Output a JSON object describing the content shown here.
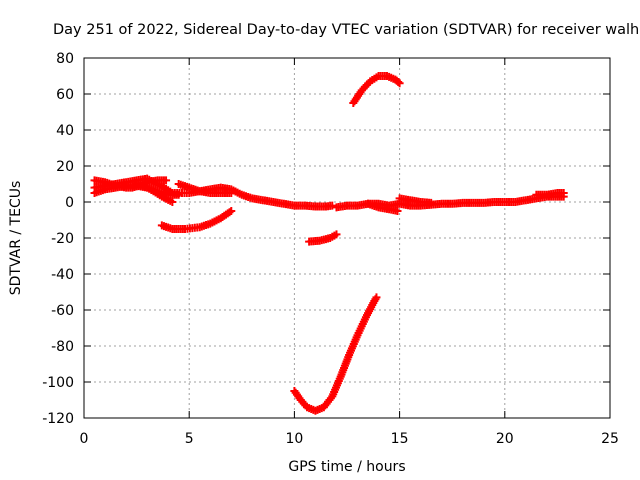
{
  "chart_data": {
    "type": "scatter",
    "title": "Day 251 of 2022, Sidereal Day-to-day VTEC variation (SDTVAR) for receiver walh",
    "xlabel": "GPS time / hours",
    "ylabel": "SDTVAR / TECUs",
    "xlim": [
      0,
      25
    ],
    "ylim": [
      -120,
      80
    ],
    "xticks": [
      0,
      5,
      10,
      15,
      20,
      25
    ],
    "yticks": [
      -120,
      -100,
      -80,
      -60,
      -40,
      -20,
      0,
      20,
      40,
      60,
      80
    ],
    "grid": true,
    "marker": "plus",
    "series_color": "#ff0000",
    "series": [
      {
        "name": "main-trace",
        "points": [
          [
            0.5,
            8
          ],
          [
            1,
            9
          ],
          [
            1.5,
            10
          ],
          [
            2,
            11
          ],
          [
            2.5,
            12
          ],
          [
            3,
            13
          ],
          [
            3.3,
            11
          ],
          [
            3.8,
            8
          ],
          [
            4.2,
            5
          ],
          [
            5,
            5
          ],
          [
            5.5,
            6
          ],
          [
            6,
            7
          ],
          [
            6.5,
            8
          ],
          [
            7,
            7
          ],
          [
            7.5,
            4
          ],
          [
            8,
            2
          ],
          [
            8.5,
            1
          ],
          [
            9,
            0
          ],
          [
            9.5,
            -1
          ],
          [
            10,
            -2
          ],
          [
            10.5,
            -2
          ],
          [
            11,
            -2.5
          ],
          [
            11.5,
            -2.5
          ],
          [
            11.8,
            -2
          ]
        ]
      },
      {
        "name": "early-arc-a",
        "points": [
          [
            0.5,
            12
          ],
          [
            1,
            11
          ],
          [
            1.5,
            9
          ],
          [
            2,
            8
          ],
          [
            2.3,
            8
          ],
          [
            2.6,
            9
          ],
          [
            3,
            11
          ],
          [
            3.5,
            12
          ],
          [
            3.9,
            12
          ]
        ]
      },
      {
        "name": "early-arc-b",
        "points": [
          [
            0.5,
            5
          ],
          [
            1,
            7
          ],
          [
            1.5,
            8
          ],
          [
            2,
            9
          ],
          [
            2.5,
            9
          ],
          [
            3,
            8
          ],
          [
            3.5,
            6
          ],
          [
            4,
            4
          ],
          [
            4.5,
            4
          ]
        ]
      },
      {
        "name": "early-arc-c",
        "points": [
          [
            2.5,
            10
          ],
          [
            3,
            8
          ],
          [
            3.3,
            6
          ],
          [
            3.7,
            3
          ],
          [
            4.2,
            0
          ]
        ]
      },
      {
        "name": "mid-arc",
        "points": [
          [
            4.5,
            10
          ],
          [
            5,
            8
          ],
          [
            5.5,
            6
          ],
          [
            6,
            5
          ],
          [
            6.5,
            5
          ],
          [
            7,
            5
          ]
        ]
      },
      {
        "name": "negative-arc",
        "points": [
          [
            3.7,
            -13
          ],
          [
            4.2,
            -15
          ],
          [
            4.8,
            -15
          ],
          [
            5.5,
            -14
          ],
          [
            6,
            -12
          ],
          [
            6.5,
            -9
          ],
          [
            7,
            -5
          ]
        ]
      },
      {
        "name": "short-segment",
        "points": [
          [
            10.7,
            -22
          ],
          [
            11.2,
            -21.5
          ],
          [
            11.7,
            -20
          ],
          [
            12,
            -18
          ]
        ]
      },
      {
        "name": "late-trace",
        "points": [
          [
            12,
            -3
          ],
          [
            12.5,
            -2
          ],
          [
            13,
            -2
          ],
          [
            13.5,
            -1
          ],
          [
            14,
            -1
          ],
          [
            14.5,
            -2
          ],
          [
            15,
            -1
          ],
          [
            15.5,
            -2
          ],
          [
            16,
            -2
          ],
          [
            16.5,
            -1.5
          ],
          [
            17,
            -1
          ],
          [
            17.5,
            -1
          ],
          [
            18,
            -0.5
          ],
          [
            18.5,
            -0.5
          ],
          [
            19,
            -0.5
          ],
          [
            19.5,
            0
          ],
          [
            20,
            0
          ],
          [
            20.5,
            0
          ],
          [
            21,
            1
          ],
          [
            21.5,
            2
          ],
          [
            22,
            3
          ],
          [
            22.5,
            3
          ],
          [
            22.8,
            3
          ]
        ]
      },
      {
        "name": "late-arc-a",
        "points": [
          [
            13.5,
            -1
          ],
          [
            14,
            -3
          ],
          [
            14.5,
            -4
          ],
          [
            14.9,
            -5
          ]
        ]
      },
      {
        "name": "late-arc-b",
        "points": [
          [
            15,
            2
          ],
          [
            15.5,
            1
          ],
          [
            16,
            0
          ],
          [
            16.5,
            -0.5
          ]
        ]
      },
      {
        "name": "late-arc-c",
        "points": [
          [
            21.5,
            4
          ],
          [
            22,
            4
          ],
          [
            22.5,
            5
          ],
          [
            22.8,
            5
          ]
        ]
      },
      {
        "name": "high-arc",
        "points": [
          [
            12.8,
            55
          ],
          [
            13.2,
            62
          ],
          [
            13.6,
            67
          ],
          [
            14,
            70
          ],
          [
            14.4,
            70
          ],
          [
            14.8,
            68
          ],
          [
            15,
            66
          ]
        ]
      },
      {
        "name": "deep-dip",
        "points": [
          [
            10,
            -105
          ],
          [
            10.3,
            -110
          ],
          [
            10.6,
            -114
          ],
          [
            11,
            -116
          ],
          [
            11.4,
            -114
          ],
          [
            11.8,
            -108
          ],
          [
            12.2,
            -97
          ],
          [
            12.6,
            -85
          ],
          [
            13,
            -74
          ],
          [
            13.4,
            -64
          ],
          [
            13.8,
            -55
          ],
          [
            13.9,
            -53
          ]
        ]
      }
    ]
  }
}
